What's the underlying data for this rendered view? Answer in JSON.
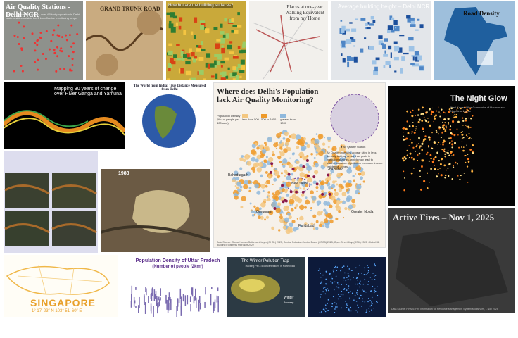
{
  "air_quality": {
    "title": "Air Quality Stations - Delhi NCR",
    "subtitle": "Despite the density shown, over 40% of population in Delhi state resides outside the 2 km effective monitoring range"
  },
  "grand_trunk": {
    "title": "GRAND TRUNK ROAD"
  },
  "building_heat": {
    "title": "How hot are the building surfaces?"
  },
  "walking": {
    "title": "Places at one-year Walking Equivalent from my Home"
  },
  "building_height": {
    "title": "Average building height – Delhi NCR"
  },
  "road_density": {
    "title": "Road Density"
  },
  "rivers": {
    "title": "Mapping 30 years of change over River Ganga and Yamuna"
  },
  "world": {
    "title": "The World from India: True Distance Measured from Delhi"
  },
  "featured": {
    "title": "Where does Delhi's Population lack Air Quality Monitoring?",
    "legend_title": "Population Density (No. of people per 400 sqm)",
    "legend": [
      "less than 500",
      "500 to 1000",
      "greater than 1000"
    ],
    "station": "Air Quality Station",
    "note": "Air Quality monitors appear sited in less densely built-up areas than parts in institutional zones, which may lead to underestimation of pollution exposure in core residential zones",
    "places": [
      "Bahadurgarh",
      "New Delhi",
      "Ghaziabad",
      "Gurugram",
      "Faridabad",
      "Greater Noida"
    ],
    "source": "Data Source: Global Human Settlement Layer (GHSL) 2025, Central Pollution Control Board (CPCB) 2025, Open Street Map (OSM) 2025, Global ML Building Footprints Microsoft 2022"
  },
  "night_glow": {
    "title": "The Night Glow",
    "subtitle": "Well-Known Blue Composite of Harmonized Nighttime Lights"
  },
  "landcover": {
    "title": "1988"
  },
  "fires": {
    "title": "Active Fires – Nov 1, 2025",
    "source": "Data Source: FIRMS: Fire Information for Resource Management System Modis/Viirs, 1 Nov 2025"
  },
  "singapore": {
    "title": "SINGAPORE",
    "subtitle": "1° 17′ 23″ N 103° 51′ 60″ E"
  },
  "uttar_pradesh": {
    "title": "Population Density of Uttar Pradesh",
    "subtitle": "(Number of people /2km²)"
  },
  "winter": {
    "title": "The Winter Pollution Trap",
    "subtitle": "Tracking PM 2.5 concentrations in North India",
    "labels": [
      "Winter",
      "January"
    ]
  }
}
